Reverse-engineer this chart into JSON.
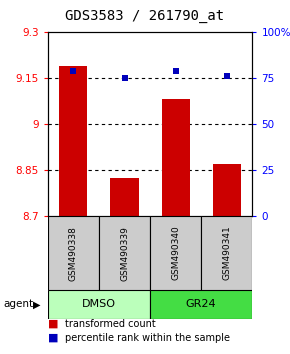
{
  "title": "GDS3583 / 261790_at",
  "samples": [
    "GSM490338",
    "GSM490339",
    "GSM490340",
    "GSM490341"
  ],
  "bar_values": [
    9.19,
    8.825,
    9.08,
    8.87
  ],
  "blue_values": [
    79,
    75,
    79,
    76
  ],
  "ylim_left": [
    8.7,
    9.3
  ],
  "ylim_right": [
    0,
    100
  ],
  "yticks_left": [
    8.7,
    8.85,
    9.0,
    9.15,
    9.3
  ],
  "ytick_labels_left": [
    "8.7",
    "8.85",
    "9",
    "9.15",
    "9.3"
  ],
  "yticks_right": [
    0,
    25,
    50,
    75,
    100
  ],
  "ytick_labels_right": [
    "0",
    "25",
    "50",
    "75",
    "100%"
  ],
  "bar_color": "#cc0000",
  "blue_color": "#0000bb",
  "bar_width": 0.55,
  "groups": [
    {
      "label": "DMSO",
      "samples": [
        0,
        1
      ],
      "color": "#bbffbb"
    },
    {
      "label": "GR24",
      "samples": [
        2,
        3
      ],
      "color": "#44dd44"
    }
  ],
  "group_row_label": "agent",
  "sample_box_color": "#cccccc",
  "title_fontsize": 10,
  "tick_fontsize": 7.5,
  "sample_fontsize": 6.5,
  "group_fontsize": 8,
  "legend_fontsize": 7
}
